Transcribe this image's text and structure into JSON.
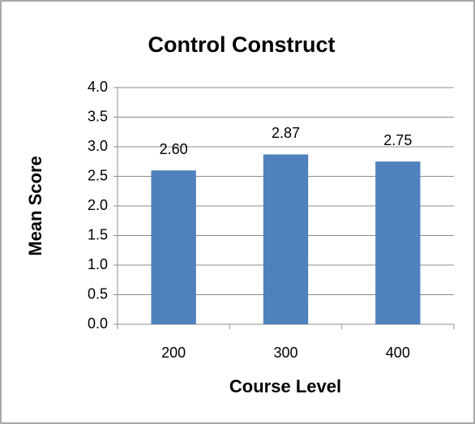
{
  "chart_data": {
    "type": "bar",
    "title": "Control Construct",
    "x_label": "Course Level",
    "y_label": "Mean Score",
    "categories": [
      "200",
      "300",
      "400"
    ],
    "values": [
      2.6,
      2.87,
      2.75
    ],
    "value_labels": [
      "2.60",
      "2.87",
      "2.75"
    ],
    "color": "#4f81bd",
    "ylim": [
      0,
      4
    ],
    "yticks": [
      {
        "value": 0,
        "label": "0.0"
      },
      0.5,
      {
        "value": 1,
        "label": "1.0"
      },
      1.5,
      {
        "value": 2,
        "label": "2.0"
      },
      2.5,
      {
        "value": 3,
        "label": "3.0"
      },
      3.5,
      {
        "value": 4,
        "label": "4.0"
      }
    ],
    "grid": true
  }
}
